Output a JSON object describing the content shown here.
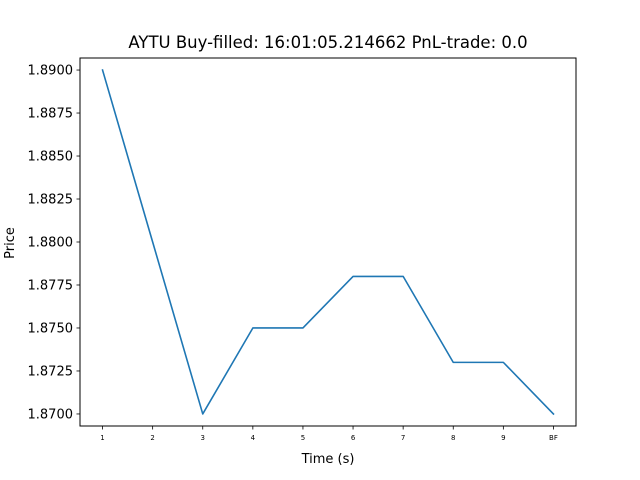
{
  "chart_data": {
    "type": "line",
    "title": "AYTU  Buy-filled:  16:01:05.214662  PnL-trade:  0.0",
    "xlabel": "Time (s)",
    "ylabel": "Price",
    "categories": [
      "1",
      "2",
      "3",
      "4",
      "5",
      "6",
      "7",
      "8",
      "9",
      "BF"
    ],
    "yticks": [
      "1.8700",
      "1.8725",
      "1.8750",
      "1.8775",
      "1.8800",
      "1.8825",
      "1.8850",
      "1.8875",
      "1.8900"
    ],
    "ylim": [
      1.8693,
      1.8907
    ],
    "series": [
      {
        "values": [
          1.89,
          1.88,
          1.87,
          1.875,
          1.875,
          1.878,
          1.878,
          1.873,
          1.873,
          1.87
        ],
        "color": "#1f77b4"
      }
    ],
    "grid": false,
    "legend": "none"
  }
}
